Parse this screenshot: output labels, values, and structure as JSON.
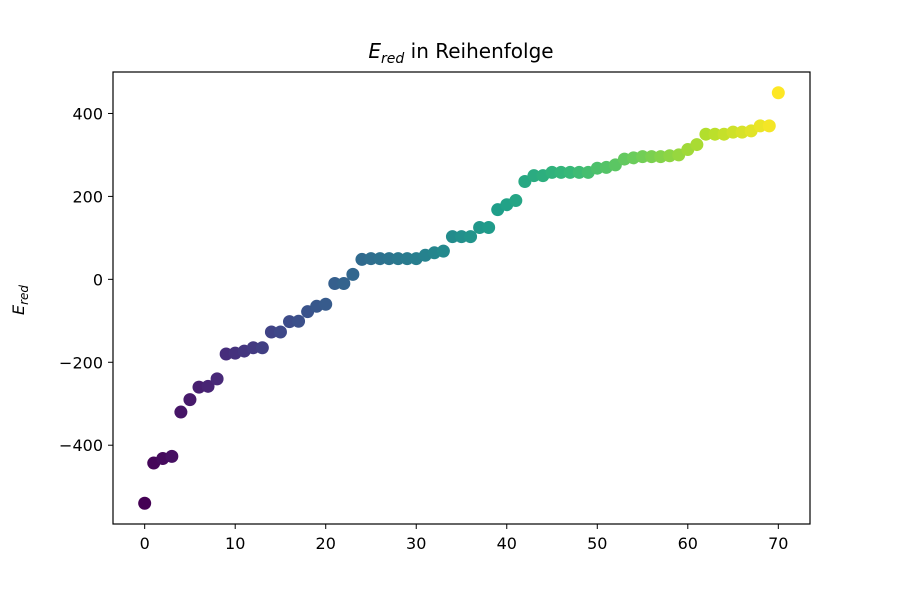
{
  "chart_data": {
    "type": "scatter",
    "title": {
      "symbol": "E",
      "subscript": "red",
      "suffix": " in Reihenfolge"
    },
    "xlabel": "",
    "ylabel": {
      "symbol": "E",
      "subscript": "red"
    },
    "xlim": [
      -3.5,
      73.5
    ],
    "ylim": [
      -590,
      500
    ],
    "xticks": [
      0,
      10,
      20,
      30,
      40,
      50,
      60,
      70
    ],
    "yticks": [
      -400,
      -200,
      0,
      200,
      400
    ],
    "xtick_labels": [
      "0",
      "10",
      "20",
      "30",
      "40",
      "50",
      "60",
      "70"
    ],
    "ytick_labels": [
      "−400",
      "−200",
      "0",
      "200",
      "400"
    ],
    "grid": false,
    "colormap": "viridis",
    "x": [
      0,
      1,
      2,
      3,
      4,
      5,
      6,
      7,
      8,
      9,
      10,
      11,
      12,
      13,
      14,
      15,
      16,
      17,
      18,
      19,
      20,
      21,
      22,
      23,
      24,
      25,
      26,
      27,
      28,
      29,
      30,
      31,
      32,
      33,
      34,
      35,
      36,
      37,
      38,
      39,
      40,
      41,
      42,
      43,
      44,
      45,
      46,
      47,
      48,
      49,
      50,
      51,
      52,
      53,
      54,
      55,
      56,
      57,
      58,
      59,
      60,
      61,
      62,
      63,
      64,
      65,
      66,
      67,
      68,
      69,
      70
    ],
    "y": [
      -540,
      -443,
      -432,
      -427,
      -320,
      -290,
      -260,
      -258,
      -240,
      -180,
      -178,
      -173,
      -165,
      -165,
      -127,
      -127,
      -102,
      -101,
      -78,
      -65,
      -60,
      -10,
      -10,
      12,
      48,
      50,
      50,
      50,
      50,
      50,
      50,
      58,
      64,
      68,
      103,
      103,
      103,
      125,
      125,
      168,
      180,
      190,
      236,
      250,
      250,
      258,
      258,
      258,
      258,
      258,
      268,
      270,
      276,
      290,
      293,
      296,
      296,
      296,
      298,
      300,
      313,
      325,
      350,
      350,
      350,
      355,
      355,
      358,
      370,
      370,
      450
    ]
  }
}
